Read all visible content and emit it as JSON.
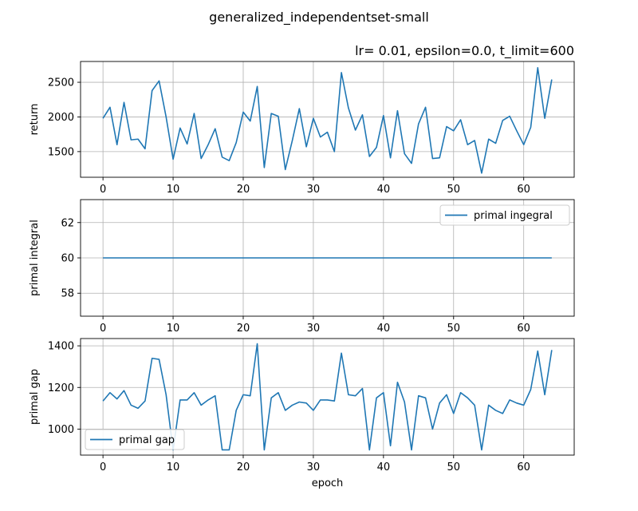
{
  "figure": {
    "suptitle": "generalized_independentset-small",
    "subtitle": "lr= 0.01, epsilon=0.0, t_limit=600",
    "line_color": "#1f77b4"
  },
  "chart_data": [
    {
      "type": "line",
      "ylabel": "return",
      "xlabel": "",
      "xlim": [
        -3.2,
        67.2
      ],
      "ylim": [
        1130,
        2800
      ],
      "xticks": [
        0,
        10,
        20,
        30,
        40,
        50,
        60
      ],
      "yticks": [
        1500,
        2000,
        2500
      ],
      "grid": true,
      "legend": null,
      "series": [
        {
          "x": [
            0,
            1,
            2,
            3,
            4,
            5,
            6,
            7,
            8,
            9,
            10,
            11,
            12,
            13,
            14,
            15,
            16,
            17,
            18,
            19,
            20,
            21,
            22,
            23,
            24,
            25,
            26,
            27,
            28,
            29,
            30,
            31,
            32,
            33,
            34,
            35,
            36,
            37,
            38,
            39,
            40,
            41,
            42,
            43,
            44,
            45,
            46,
            47,
            48,
            49,
            50,
            51,
            52,
            53,
            54,
            55,
            56,
            57,
            58,
            59,
            60,
            61,
            62,
            63,
            64
          ],
          "y": [
            1980,
            2140,
            1600,
            2210,
            1670,
            1680,
            1540,
            2380,
            2520,
            2000,
            1390,
            1840,
            1610,
            2050,
            1400,
            1600,
            1830,
            1420,
            1370,
            1630,
            2070,
            1940,
            2440,
            1270,
            2050,
            2010,
            1240,
            1660,
            2120,
            1570,
            1980,
            1710,
            1780,
            1500,
            2640,
            2130,
            1810,
            2030,
            1430,
            1560,
            2020,
            1410,
            2090,
            1470,
            1330,
            1900,
            2140,
            1400,
            1410,
            1860,
            1800,
            1960,
            1600,
            1660,
            1190,
            1680,
            1620,
            1950,
            2010,
            1800,
            1600,
            1850,
            2710,
            1980,
            2540
          ]
        }
      ]
    },
    {
      "type": "line",
      "ylabel": "primal integral",
      "xlabel": "",
      "xlim": [
        -3.2,
        67.2
      ],
      "ylim": [
        56.7,
        63.3
      ],
      "xticks": [
        0,
        10,
        20,
        30,
        40,
        50,
        60
      ],
      "yticks": [
        58,
        60,
        62
      ],
      "grid": true,
      "legend": "upper right",
      "series": [
        {
          "name": "primal ingegral",
          "x": [
            0,
            64
          ],
          "y": [
            60,
            60
          ]
        }
      ]
    },
    {
      "type": "line",
      "ylabel": "primal gap",
      "xlabel": "epoch",
      "xlim": [
        -3.2,
        67.2
      ],
      "ylim": [
        875,
        1435
      ],
      "xticks": [
        0,
        10,
        20,
        30,
        40,
        50,
        60
      ],
      "yticks": [
        1000,
        1200,
        1400
      ],
      "grid": true,
      "legend": "lower left",
      "series": [
        {
          "name": "primal gap",
          "x": [
            0,
            1,
            2,
            3,
            4,
            5,
            6,
            7,
            8,
            9,
            10,
            11,
            12,
            13,
            14,
            15,
            16,
            17,
            18,
            19,
            20,
            21,
            22,
            23,
            24,
            25,
            26,
            27,
            28,
            29,
            30,
            31,
            32,
            33,
            34,
            35,
            36,
            37,
            38,
            39,
            40,
            41,
            42,
            43,
            44,
            45,
            46,
            47,
            48,
            49,
            50,
            51,
            52,
            53,
            54,
            55,
            56,
            57,
            58,
            59,
            60,
            61,
            62,
            63,
            64
          ],
          "y": [
            1135,
            1175,
            1145,
            1185,
            1115,
            1100,
            1135,
            1340,
            1335,
            1165,
            900,
            1140,
            1140,
            1175,
            1115,
            1140,
            1160,
            900,
            900,
            1090,
            1165,
            1160,
            1410,
            900,
            1150,
            1175,
            1090,
            1115,
            1130,
            1125,
            1090,
            1140,
            1140,
            1135,
            1365,
            1165,
            1160,
            1195,
            900,
            1150,
            1175,
            920,
            1225,
            1130,
            900,
            1160,
            1150,
            1000,
            1125,
            1165,
            1075,
            1175,
            1150,
            1115,
            900,
            1115,
            1090,
            1075,
            1140,
            1125,
            1115,
            1190,
            1375,
            1165,
            1380
          ]
        }
      ]
    }
  ]
}
